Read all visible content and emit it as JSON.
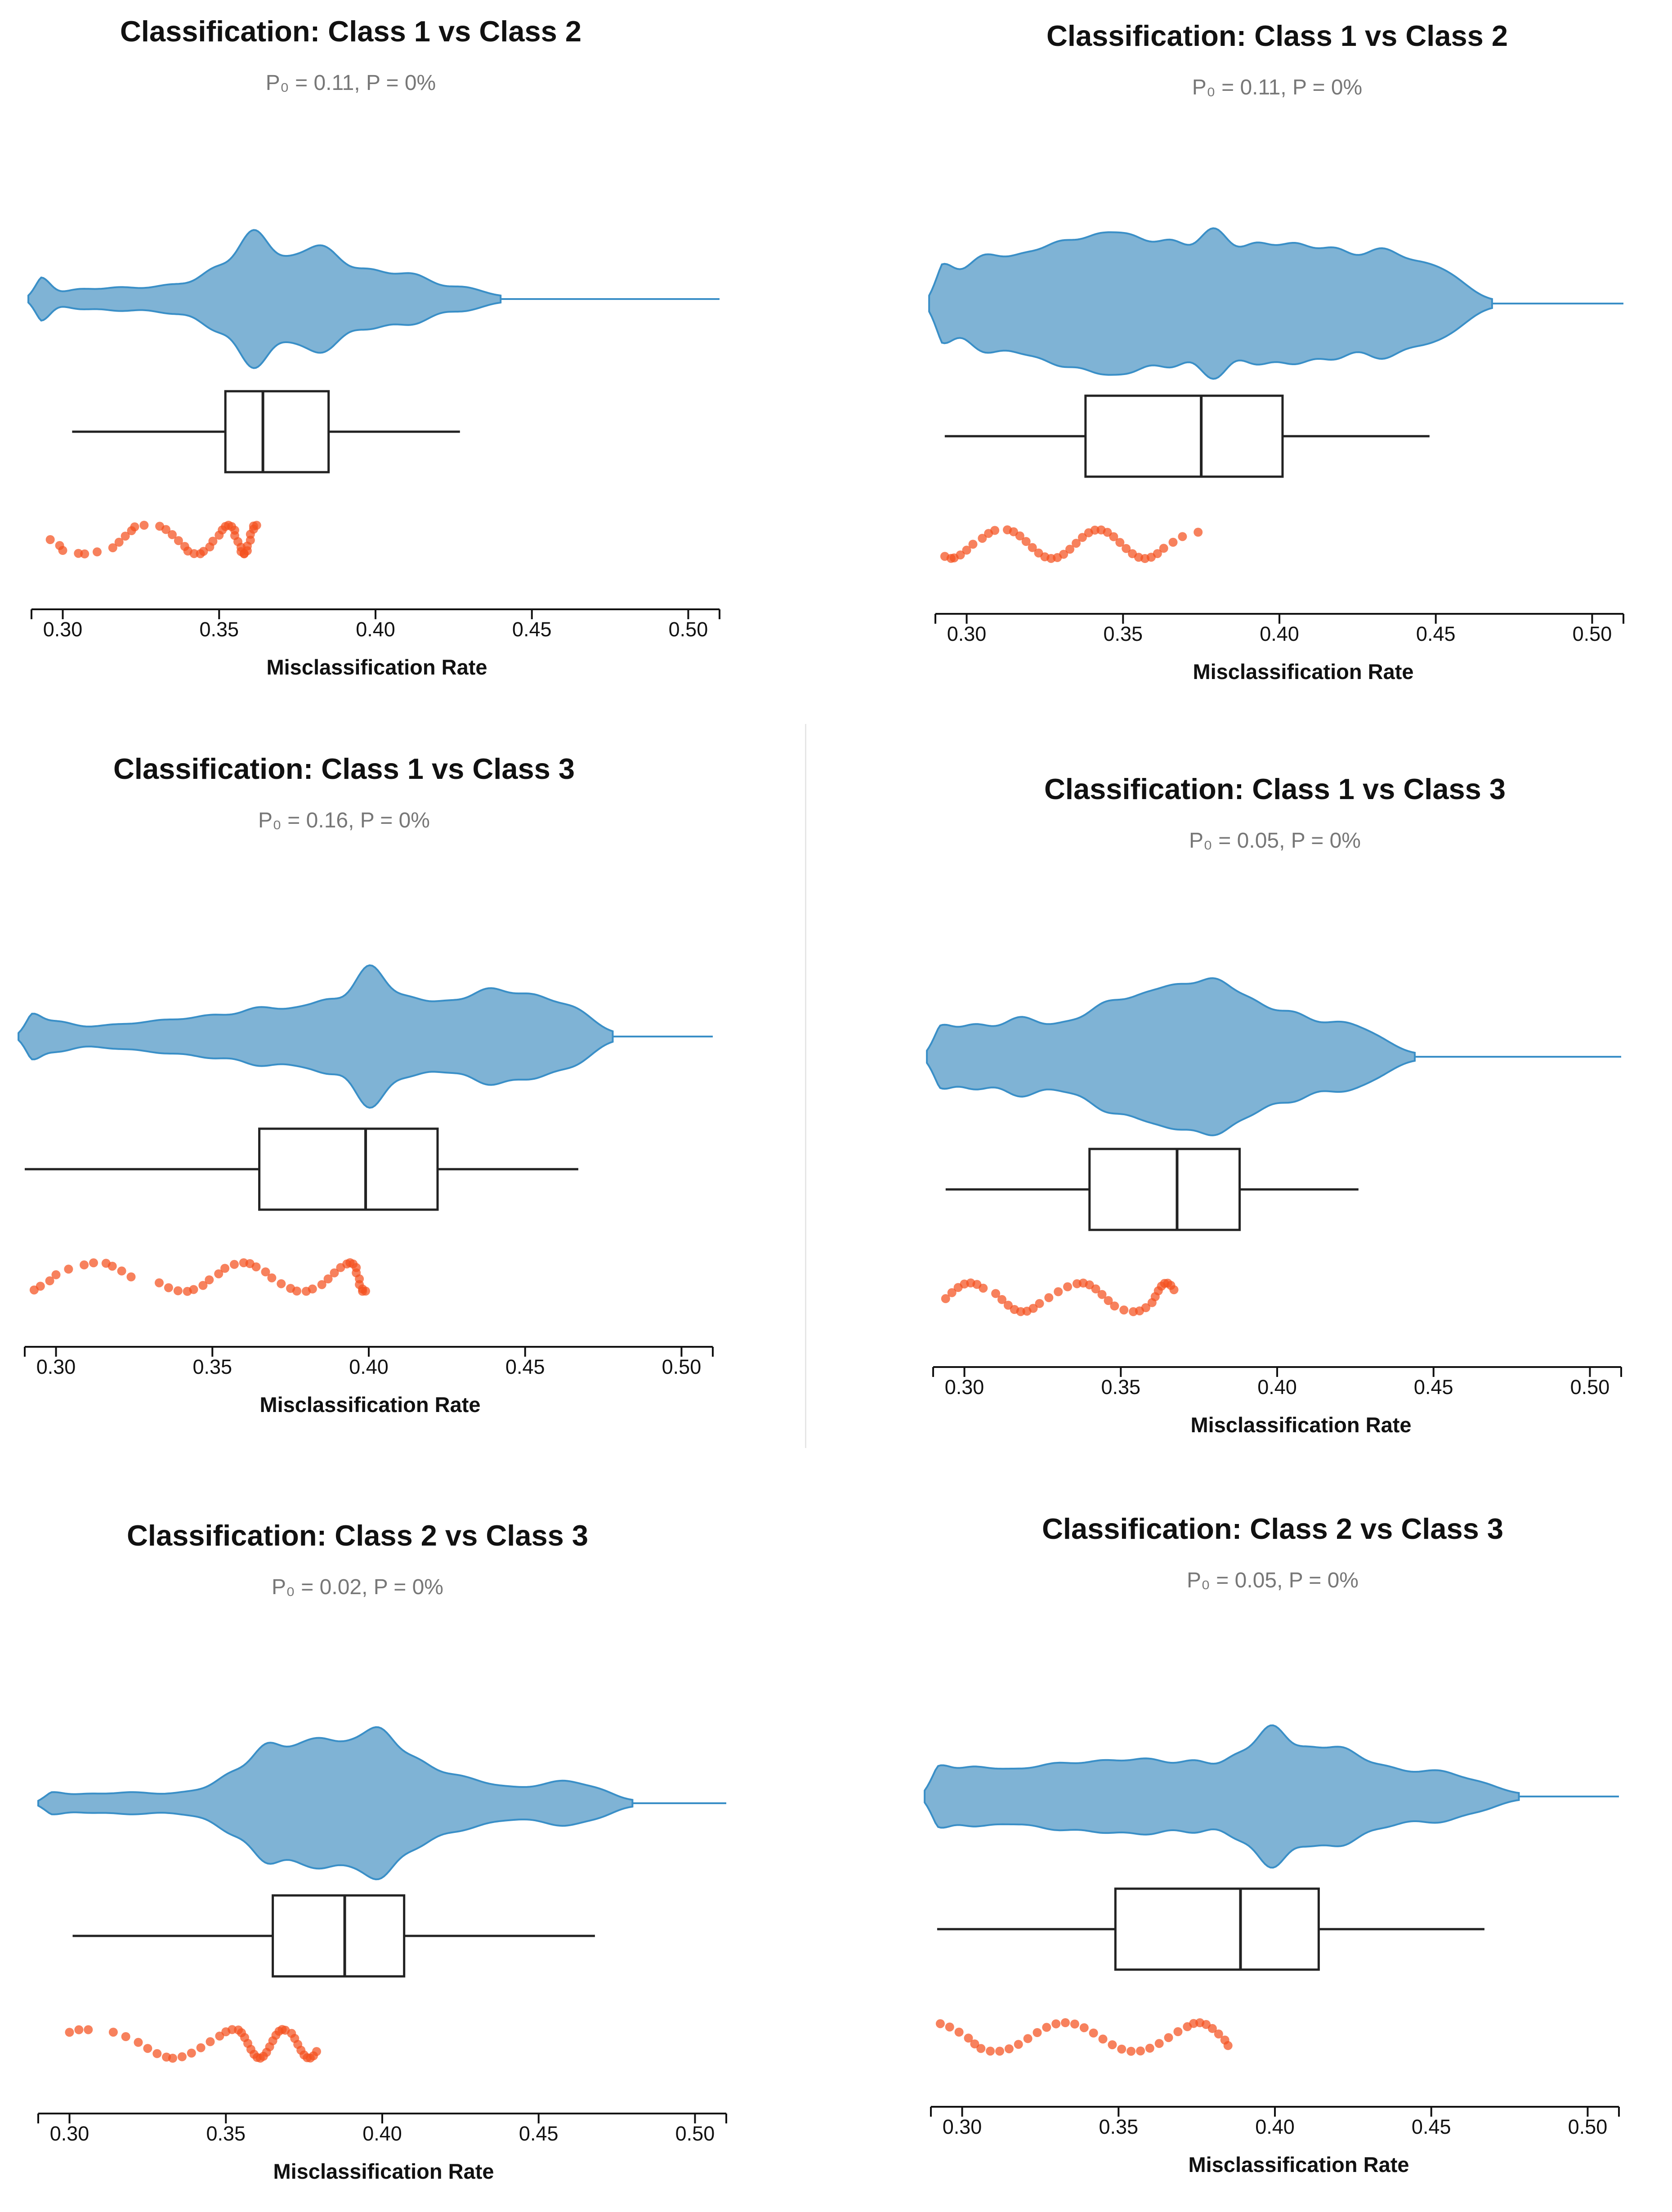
{
  "colors": {
    "violin_fill": "#7fb3d5",
    "violin_stroke": "#3a8fc7",
    "points": "#f4511e",
    "box": "#222222",
    "axis": "#111111"
  },
  "chart_data": [
    {
      "type": "violin-box-strip",
      "title": "Classification: Class 1 vs Class 2",
      "subtitle": "P₀ = 0.11, P = 0%",
      "xlabel": "Misclassification Rate",
      "xlim": [
        0.29,
        0.51
      ],
      "xticks": [
        "0.30",
        "0.35",
        "0.40",
        "0.45",
        "0.50"
      ],
      "violin": {
        "baseline_max": 0.51,
        "bumps": [
          [
            0.293,
            0.3,
            0.003
          ],
          [
            0.305,
            0.11,
            0.005
          ],
          [
            0.318,
            0.14,
            0.006
          ],
          [
            0.335,
            0.19,
            0.007
          ],
          [
            0.349,
            0.4,
            0.005
          ],
          [
            0.361,
            1.0,
            0.005
          ],
          [
            0.372,
            0.42,
            0.005
          ],
          [
            0.383,
            0.76,
            0.006
          ],
          [
            0.398,
            0.39,
            0.006
          ],
          [
            0.412,
            0.34,
            0.006
          ],
          [
            0.428,
            0.15,
            0.006
          ]
        ]
      },
      "box": {
        "whisker_low": 0.303,
        "q1": 0.352,
        "median": 0.364,
        "q3": 0.385,
        "whisker_high": 0.427
      },
      "points": [
        0.296,
        0.299,
        0.3,
        0.305,
        0.307,
        0.311,
        0.316,
        0.318,
        0.32,
        0.322,
        0.323,
        0.326,
        0.331,
        0.333,
        0.335,
        0.337,
        0.339,
        0.34,
        0.342,
        0.344,
        0.345,
        0.347,
        0.348,
        0.35,
        0.351,
        0.352,
        0.353,
        0.354,
        0.355,
        0.355,
        0.356,
        0.357,
        0.357,
        0.358,
        0.358,
        0.359,
        0.359,
        0.36,
        0.36,
        0.361,
        0.361,
        0.362
      ]
    },
    {
      "type": "violin-box-strip",
      "title": "Classification: Class 1 vs Class 2",
      "subtitle": "P₀ = 0.11, P = 0%",
      "xlabel": "Misclassification Rate",
      "xlim": [
        0.29,
        0.51
      ],
      "xticks": [
        "0.30",
        "0.35",
        "0.40",
        "0.45",
        "0.50"
      ],
      "violin": {
        "baseline_max": 0.51,
        "bumps": [
          [
            0.292,
            0.52,
            0.004
          ],
          [
            0.305,
            0.67,
            0.006
          ],
          [
            0.318,
            0.6,
            0.006
          ],
          [
            0.33,
            0.77,
            0.006
          ],
          [
            0.342,
            0.82,
            0.006
          ],
          [
            0.353,
            0.82,
            0.006
          ],
          [
            0.366,
            0.86,
            0.006
          ],
          [
            0.379,
            1.0,
            0.005
          ],
          [
            0.392,
            0.82,
            0.006
          ],
          [
            0.405,
            0.78,
            0.006
          ],
          [
            0.418,
            0.73,
            0.006
          ],
          [
            0.432,
            0.7,
            0.006
          ],
          [
            0.445,
            0.52,
            0.007
          ],
          [
            0.456,
            0.25,
            0.006
          ]
        ]
      },
      "box": {
        "whisker_low": 0.293,
        "q1": 0.338,
        "median": 0.375,
        "q3": 0.401,
        "whisker_high": 0.448
      },
      "points": [
        0.293,
        0.295,
        0.296,
        0.298,
        0.3,
        0.302,
        0.305,
        0.307,
        0.309,
        0.313,
        0.315,
        0.317,
        0.319,
        0.321,
        0.323,
        0.325,
        0.327,
        0.329,
        0.331,
        0.333,
        0.335,
        0.337,
        0.339,
        0.341,
        0.343,
        0.345,
        0.347,
        0.349,
        0.351,
        0.353,
        0.355,
        0.357,
        0.359,
        0.361,
        0.363,
        0.366,
        0.369,
        0.374
      ]
    },
    {
      "type": "violin-box-strip",
      "title": "Classification: Class 1 vs Class 3",
      "subtitle": "P₀ = 0.16, P = 0%",
      "xlabel": "Misclassification Rate",
      "xlim": [
        0.29,
        0.51
      ],
      "xticks": [
        "0.30",
        "0.35",
        "0.40",
        "0.45",
        "0.50"
      ],
      "violin": {
        "baseline_max": 0.51,
        "bumps": [
          [
            0.292,
            0.24,
            0.003
          ],
          [
            0.3,
            0.2,
            0.006
          ],
          [
            0.318,
            0.14,
            0.007
          ],
          [
            0.334,
            0.2,
            0.007
          ],
          [
            0.35,
            0.28,
            0.007
          ],
          [
            0.365,
            0.37,
            0.006
          ],
          [
            0.378,
            0.35,
            0.006
          ],
          [
            0.388,
            0.42,
            0.005
          ],
          [
            0.4,
            1.0,
            0.005
          ],
          [
            0.412,
            0.52,
            0.006
          ],
          [
            0.425,
            0.43,
            0.006
          ],
          [
            0.438,
            0.61,
            0.006
          ],
          [
            0.452,
            0.58,
            0.007
          ],
          [
            0.466,
            0.35,
            0.006
          ]
        ]
      },
      "box": {
        "whisker_low": 0.29,
        "q1": 0.365,
        "median": 0.399,
        "q3": 0.422,
        "whisker_high": 0.467
      },
      "points": [
        0.293,
        0.295,
        0.298,
        0.3,
        0.304,
        0.309,
        0.312,
        0.316,
        0.318,
        0.321,
        0.324,
        0.333,
        0.336,
        0.339,
        0.342,
        0.344,
        0.347,
        0.349,
        0.352,
        0.354,
        0.357,
        0.36,
        0.362,
        0.364,
        0.367,
        0.369,
        0.372,
        0.375,
        0.377,
        0.38,
        0.382,
        0.385,
        0.387,
        0.389,
        0.391,
        0.393,
        0.394,
        0.395,
        0.396,
        0.396,
        0.397,
        0.397,
        0.398,
        0.398,
        0.399
      ]
    },
    {
      "type": "violin-box-strip",
      "title": "Classification: Class 1 vs Class 3",
      "subtitle": "P₀ = 0.05, P = 0%",
      "xlabel": "Misclassification Rate",
      "xlim": [
        0.29,
        0.51
      ],
      "xticks": [
        "0.30",
        "0.35",
        "0.40",
        "0.45",
        "0.50"
      ],
      "violin": {
        "baseline_max": 0.51,
        "bumps": [
          [
            0.292,
            0.37,
            0.004
          ],
          [
            0.303,
            0.45,
            0.006
          ],
          [
            0.318,
            0.55,
            0.006
          ],
          [
            0.332,
            0.42,
            0.006
          ],
          [
            0.345,
            0.7,
            0.006
          ],
          [
            0.357,
            0.72,
            0.006
          ],
          [
            0.368,
            0.85,
            0.006
          ],
          [
            0.38,
            1.0,
            0.006
          ],
          [
            0.392,
            0.7,
            0.006
          ],
          [
            0.405,
            0.57,
            0.006
          ],
          [
            0.42,
            0.47,
            0.007
          ],
          [
            0.432,
            0.2,
            0.006
          ]
        ]
      },
      "box": {
        "whisker_low": 0.294,
        "q1": 0.34,
        "median": 0.368,
        "q3": 0.388,
        "whisker_high": 0.426
      },
      "points": [
        0.294,
        0.296,
        0.298,
        0.3,
        0.302,
        0.304,
        0.306,
        0.31,
        0.312,
        0.314,
        0.316,
        0.318,
        0.32,
        0.322,
        0.324,
        0.327,
        0.33,
        0.333,
        0.336,
        0.338,
        0.34,
        0.342,
        0.344,
        0.346,
        0.348,
        0.351,
        0.354,
        0.356,
        0.358,
        0.36,
        0.361,
        0.362,
        0.363,
        0.364,
        0.365,
        0.366,
        0.367
      ]
    },
    {
      "type": "violin-box-strip",
      "title": "Classification: Class 2 vs Class 3",
      "subtitle": "P₀ = 0.02, P = 0%",
      "xlabel": "Misclassification Rate",
      "xlim": [
        0.29,
        0.51
      ],
      "xticks": [
        "0.30",
        "0.35",
        "0.40",
        "0.45",
        "0.50"
      ],
      "violin": {
        "baseline_max": 0.51,
        "bumps": [
          [
            0.294,
            0.12,
            0.004
          ],
          [
            0.305,
            0.1,
            0.006
          ],
          [
            0.32,
            0.13,
            0.007
          ],
          [
            0.34,
            0.15,
            0.008
          ],
          [
            0.352,
            0.35,
            0.005
          ],
          [
            0.363,
            0.8,
            0.005
          ],
          [
            0.373,
            0.6,
            0.005
          ],
          [
            0.381,
            0.7,
            0.005
          ],
          [
            0.39,
            0.65,
            0.005
          ],
          [
            0.399,
            0.93,
            0.005
          ],
          [
            0.41,
            0.58,
            0.006
          ],
          [
            0.424,
            0.35,
            0.007
          ],
          [
            0.44,
            0.2,
            0.008
          ],
          [
            0.458,
            0.3,
            0.007
          ],
          [
            0.47,
            0.12,
            0.005
          ]
        ]
      },
      "box": {
        "whisker_low": 0.301,
        "q1": 0.365,
        "median": 0.388,
        "q3": 0.407,
        "whisker_high": 0.468
      },
      "points": [
        0.3,
        0.303,
        0.306,
        0.314,
        0.318,
        0.322,
        0.325,
        0.328,
        0.331,
        0.333,
        0.336,
        0.339,
        0.342,
        0.345,
        0.348,
        0.35,
        0.352,
        0.354,
        0.355,
        0.356,
        0.357,
        0.358,
        0.359,
        0.36,
        0.361,
        0.362,
        0.363,
        0.364,
        0.365,
        0.366,
        0.367,
        0.368,
        0.369,
        0.371,
        0.372,
        0.373,
        0.374,
        0.375,
        0.376,
        0.377,
        0.378,
        0.379
      ]
    },
    {
      "type": "violin-box-strip",
      "title": "Classification: Class 2 vs Class 3",
      "subtitle": "P₀ = 0.05, P = 0%",
      "xlabel": "Misclassification Rate",
      "xlim": [
        0.29,
        0.51
      ],
      "xticks": [
        "0.30",
        "0.35",
        "0.40",
        "0.45",
        "0.50"
      ],
      "violin": {
        "baseline_max": 0.51,
        "bumps": [
          [
            0.292,
            0.35,
            0.004
          ],
          [
            0.302,
            0.36,
            0.006
          ],
          [
            0.315,
            0.33,
            0.007
          ],
          [
            0.33,
            0.42,
            0.007
          ],
          [
            0.345,
            0.45,
            0.007
          ],
          [
            0.36,
            0.5,
            0.007
          ],
          [
            0.375,
            0.47,
            0.006
          ],
          [
            0.388,
            0.52,
            0.005
          ],
          [
            0.399,
            1.0,
            0.005
          ],
          [
            0.41,
            0.55,
            0.005
          ],
          [
            0.421,
            0.65,
            0.006
          ],
          [
            0.435,
            0.4,
            0.007
          ],
          [
            0.452,
            0.35,
            0.007
          ],
          [
            0.466,
            0.15,
            0.006
          ]
        ]
      },
      "box": {
        "whisker_low": 0.292,
        "q1": 0.349,
        "median": 0.389,
        "q3": 0.414,
        "whisker_high": 0.467
      },
      "points": [
        0.293,
        0.296,
        0.299,
        0.302,
        0.304,
        0.306,
        0.309,
        0.312,
        0.315,
        0.318,
        0.321,
        0.324,
        0.327,
        0.33,
        0.333,
        0.336,
        0.339,
        0.342,
        0.345,
        0.348,
        0.351,
        0.354,
        0.357,
        0.36,
        0.363,
        0.366,
        0.369,
        0.372,
        0.374,
        0.376,
        0.378,
        0.38,
        0.382,
        0.384,
        0.385
      ]
    }
  ]
}
